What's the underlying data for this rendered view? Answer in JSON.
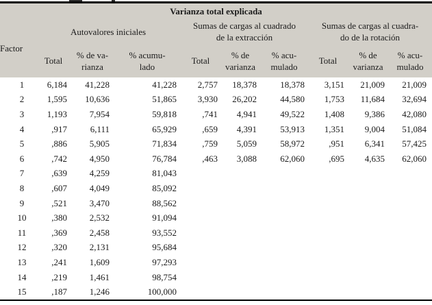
{
  "table": {
    "title": "Varianza total explicada",
    "header_bg": "#d2cfc8",
    "border_color": "#000000",
    "factor_label": "Factor",
    "groups": [
      {
        "label": "Autovalores iniciales",
        "columns": [
          "Total",
          "% de va-\nrianza",
          "% acumu-\nlado"
        ]
      },
      {
        "label": "Sumas de cargas al cuadrado\nde la extracción",
        "columns": [
          "Total",
          "% de\nvarianza",
          "% acu-\nmulado"
        ]
      },
      {
        "label": "Sumas de cargas al cuadra-\ndo de la rotación",
        "columns": [
          "Total",
          "% de\nvarianza",
          "% acu-\nmulado"
        ]
      }
    ],
    "rows": [
      [
        "1",
        "6,184",
        "41,228",
        "41,228",
        "2,757",
        "18,378",
        "18,378",
        "3,151",
        "21,009",
        "21,009"
      ],
      [
        "2",
        "1,595",
        "10,636",
        "51,865",
        "3,930",
        "26,202",
        "44,580",
        "1,753",
        "11,684",
        "32,694"
      ],
      [
        "3",
        "1,193",
        "7,954",
        "59,818",
        ",741",
        "4,941",
        "49,522",
        "1,408",
        "9,386",
        "42,080"
      ],
      [
        "4",
        ",917",
        "6,111",
        "65,929",
        ",659",
        "4,391",
        "53,913",
        "1,351",
        "9,004",
        "51,084"
      ],
      [
        "5",
        ",886",
        "5,905",
        "71,834",
        ",759",
        "5,059",
        "58,972",
        ",951",
        "6,341",
        "57,425"
      ],
      [
        "6",
        ",742",
        "4,950",
        "76,784",
        ",463",
        "3,088",
        "62,060",
        ",695",
        "4,635",
        "62,060"
      ],
      [
        "7",
        ",639",
        "4,259",
        "81,043",
        "",
        "",
        "",
        "",
        "",
        ""
      ],
      [
        "8",
        ",607",
        "4,049",
        "85,092",
        "",
        "",
        "",
        "",
        "",
        ""
      ],
      [
        "9",
        ",521",
        "3,470",
        "88,562",
        "",
        "",
        "",
        "",
        "",
        ""
      ],
      [
        "10",
        ",380",
        "2,532",
        "91,094",
        "",
        "",
        "",
        "",
        "",
        ""
      ],
      [
        "11",
        ",369",
        "2,458",
        "93,552",
        "",
        "",
        "",
        "",
        "",
        ""
      ],
      [
        "12",
        ",320",
        "2,131",
        "95,684",
        "",
        "",
        "",
        "",
        "",
        ""
      ],
      [
        "13",
        ",241",
        "1,609",
        "97,293",
        "",
        "",
        "",
        "",
        "",
        ""
      ],
      [
        "14",
        ",219",
        "1,461",
        "98,754",
        "",
        "",
        "",
        "",
        "",
        ""
      ],
      [
        "15",
        ",187",
        "1,246",
        "100,000",
        "",
        "",
        "",
        "",
        "",
        ""
      ]
    ]
  }
}
